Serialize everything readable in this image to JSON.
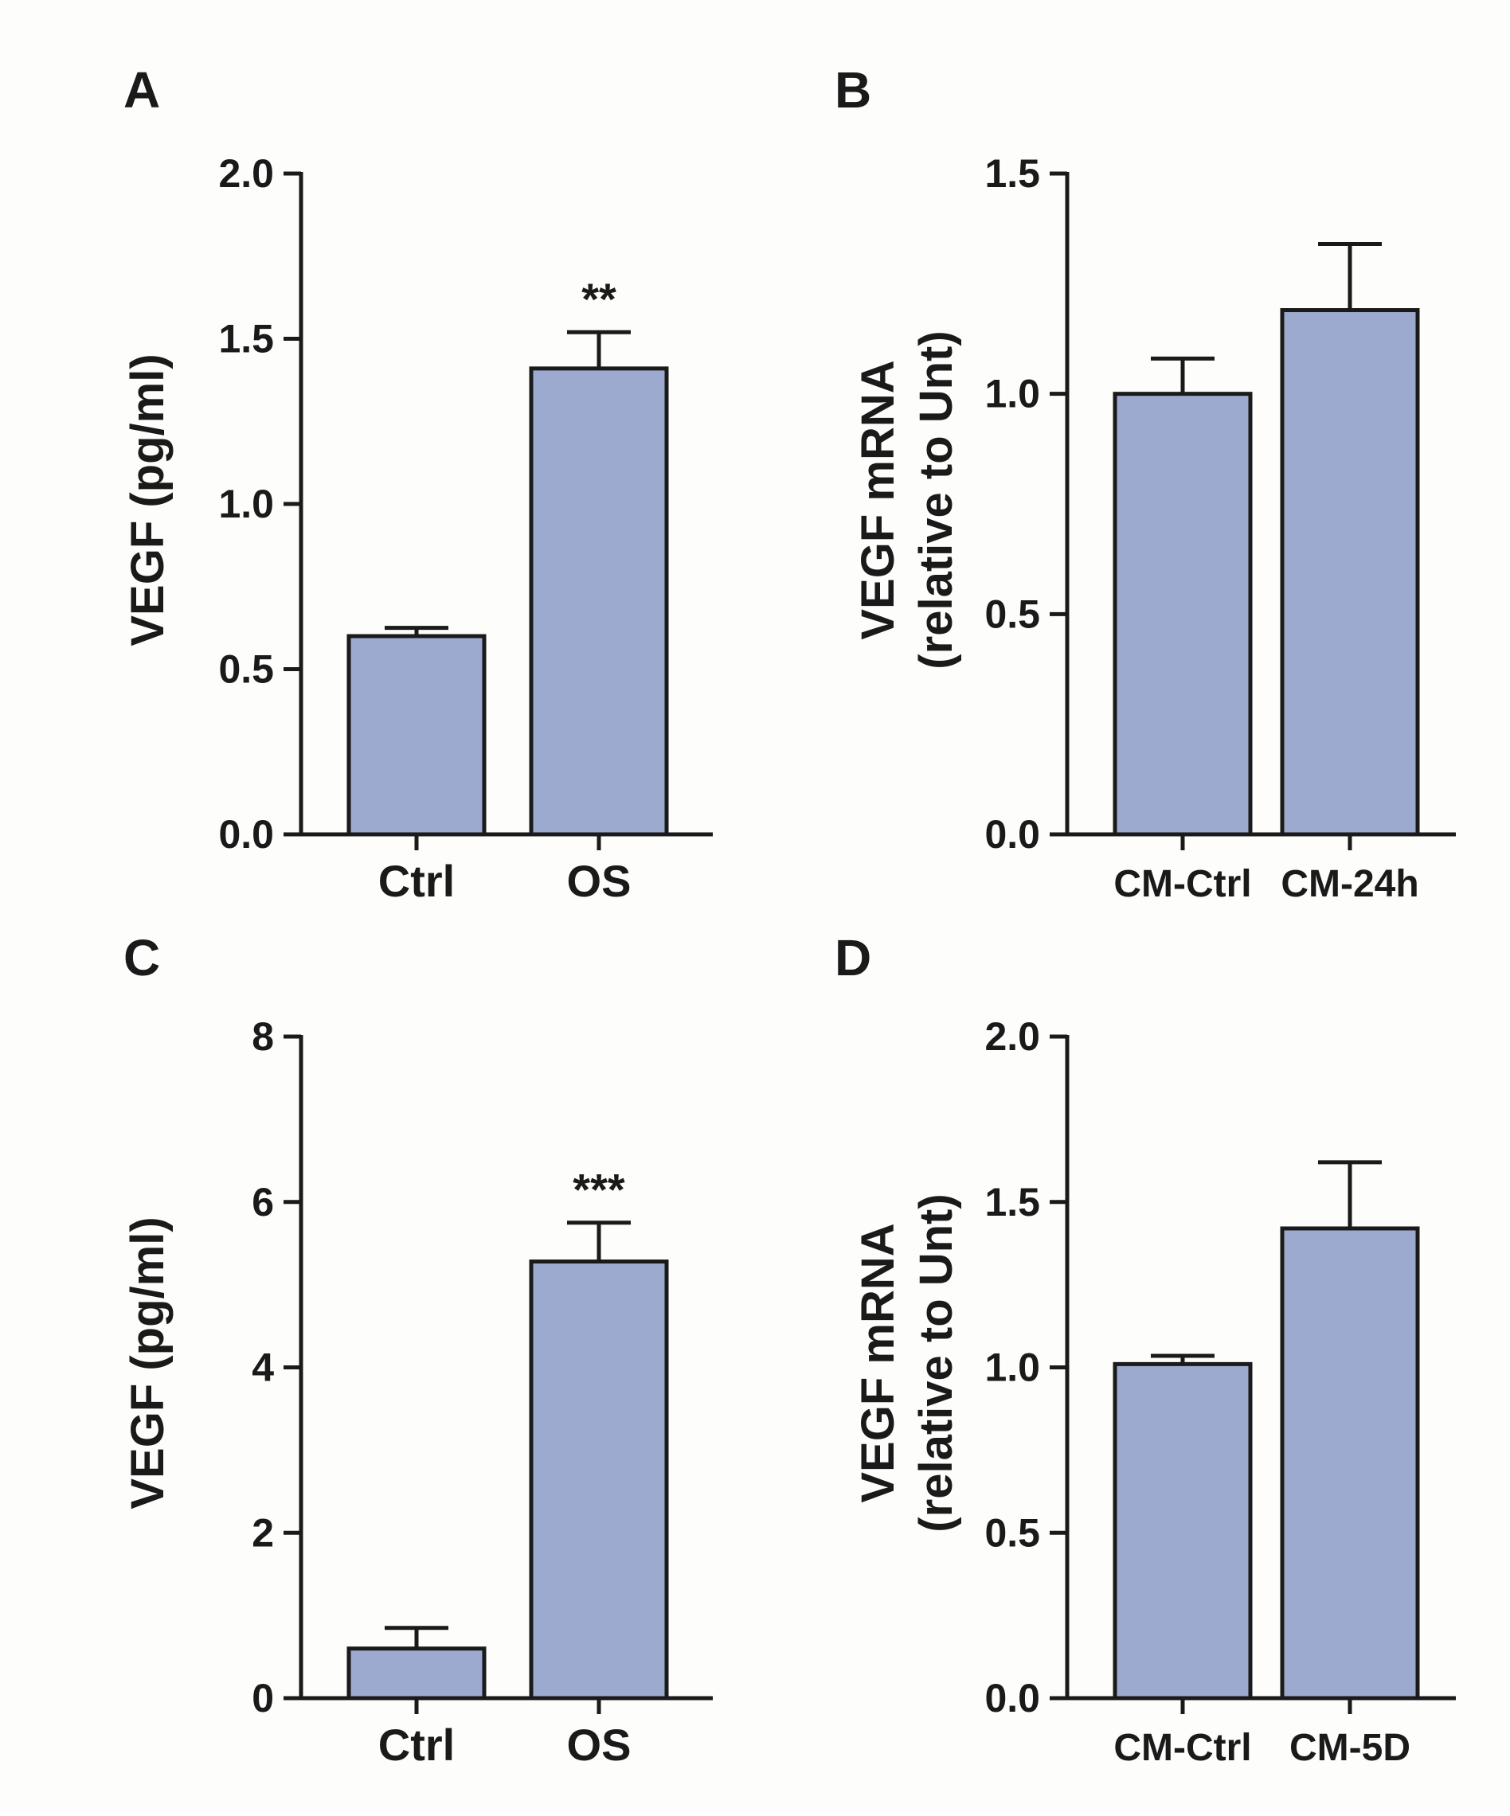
{
  "colors": {
    "bar_fill": "#9daacf",
    "stroke": "#1a1a1a",
    "background": "#fdfdfb"
  },
  "chart_data": [
    {
      "panel": "A",
      "type": "bar",
      "ylabel": "VEGF (pg/ml)",
      "ylim": [
        0,
        2.0
      ],
      "yticks": [
        "0.0",
        "0.5",
        "1.0",
        "1.5",
        "2.0"
      ],
      "ytick_values": [
        0,
        0.5,
        1.0,
        1.5,
        2.0
      ],
      "categories": [
        "Ctrl",
        "OS"
      ],
      "values": [
        0.6,
        1.41
      ],
      "errors": [
        0.025,
        0.11
      ],
      "annotations": [
        "",
        "**"
      ]
    },
    {
      "panel": "B",
      "type": "bar",
      "ylabel": "VEGF mRNA",
      "ylabel2": "(relative to Unt)",
      "ylim": [
        0,
        1.5
      ],
      "yticks": [
        "0.0",
        "0.5",
        "1.0",
        "1.5"
      ],
      "ytick_values": [
        0,
        0.5,
        1.0,
        1.5
      ],
      "categories": [
        "CM-Ctrl",
        "CM-24h"
      ],
      "values": [
        1.0,
        1.19
      ],
      "errors": [
        0.08,
        0.15
      ],
      "annotations": [
        "",
        ""
      ]
    },
    {
      "panel": "C",
      "type": "bar",
      "ylabel": "VEGF (pg/ml)",
      "ylim": [
        0,
        8
      ],
      "yticks": [
        "0",
        "2",
        "4",
        "6",
        "8"
      ],
      "ytick_values": [
        0,
        2,
        4,
        6,
        8
      ],
      "categories": [
        "Ctrl",
        "OS"
      ],
      "values": [
        0.6,
        5.28
      ],
      "errors": [
        0.25,
        0.47
      ],
      "annotations": [
        "",
        "***"
      ]
    },
    {
      "panel": "D",
      "type": "bar",
      "ylabel": "VEGF mRNA",
      "ylabel2": "(relative to Unt)",
      "ylim": [
        0,
        2.0
      ],
      "yticks": [
        "0.0",
        "0.5",
        "1.0",
        "1.5",
        "2.0"
      ],
      "ytick_values": [
        0,
        0.5,
        1.0,
        1.5,
        2.0
      ],
      "categories": [
        "CM-Ctrl",
        "CM-5D"
      ],
      "values": [
        1.01,
        1.42
      ],
      "errors": [
        0.025,
        0.2
      ],
      "annotations": [
        "",
        ""
      ]
    }
  ]
}
